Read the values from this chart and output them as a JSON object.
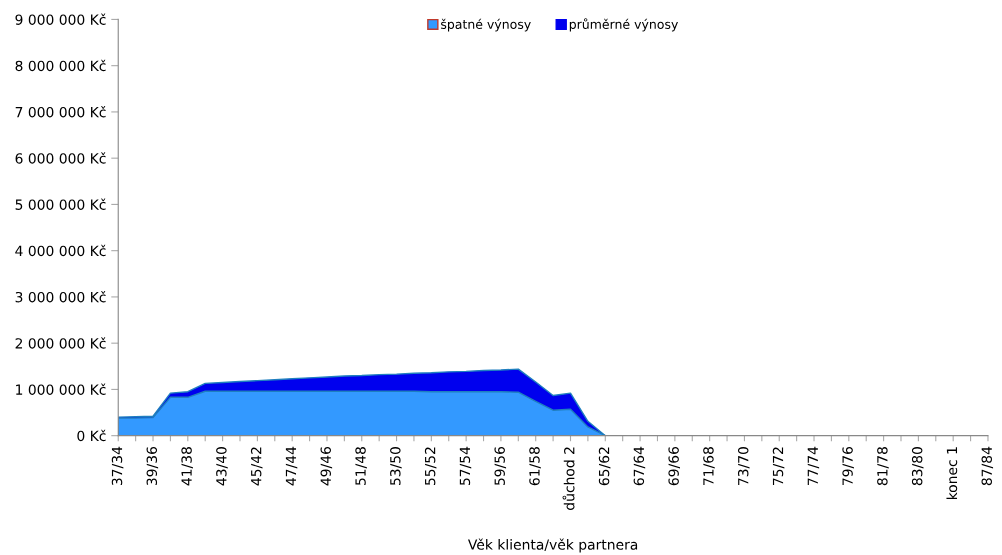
{
  "chart_data": {
    "type": "area",
    "xlabel": "Věk klienta/věk partnera",
    "legend": "top",
    "categories": [
      "37/34",
      null,
      "39/36",
      null,
      "41/38",
      null,
      "43/40",
      null,
      "45/42",
      null,
      "47/44",
      null,
      "49/46",
      null,
      "51/48",
      null,
      "53/50",
      null,
      "55/52",
      null,
      "57/54",
      null,
      "59/56",
      null,
      "61/58",
      null,
      "důchod 2",
      null,
      "65/62",
      null,
      "67/64",
      null,
      "69/66",
      null,
      "71/68",
      null,
      "73/70",
      null,
      "75/72",
      null,
      "77/74",
      null,
      "79/76",
      null,
      "81/78",
      null,
      "83/80",
      null,
      "konec 1",
      null,
      "87/84"
    ],
    "series": [
      {
        "name": "špatné výnosy",
        "color": "#3399ff",
        "values": [
          380000,
          380000,
          390000,
          830000,
          830000,
          960000,
          960000,
          960000,
          960000,
          960000,
          960000,
          960000,
          960000,
          960000,
          960000,
          960000,
          960000,
          960000,
          950000,
          950000,
          950000,
          950000,
          950000,
          940000,
          740000,
          550000,
          570000,
          190000,
          0,
          0,
          0,
          0,
          0,
          0,
          0,
          0,
          0,
          0,
          0,
          0,
          0,
          0,
          0,
          0,
          0,
          0,
          0,
          0,
          0,
          0,
          0
        ]
      },
      {
        "name": "průměrné výnosy",
        "color": "#0000ee",
        "values": [
          400000,
          410000,
          420000,
          920000,
          950000,
          1130000,
          1150000,
          1170000,
          1190000,
          1210000,
          1230000,
          1250000,
          1270000,
          1290000,
          1300000,
          1320000,
          1330000,
          1350000,
          1360000,
          1380000,
          1390000,
          1410000,
          1420000,
          1440000,
          1160000,
          870000,
          920000,
          310000,
          0,
          0,
          0,
          0,
          0,
          0,
          0,
          0,
          0,
          0,
          0,
          0,
          0,
          0,
          0,
          0,
          0,
          0,
          0,
          0,
          0,
          0,
          0
        ]
      }
    ],
    "ylim": [
      0,
      9000000
    ],
    "yticks": [
      {
        "value": 0,
        "label": "0 Kč"
      },
      {
        "value": 1000000,
        "label": "1 000 000 Kč"
      },
      {
        "value": 2000000,
        "label": "2 000 000 Kč"
      },
      {
        "value": 3000000,
        "label": "3 000 000 Kč"
      },
      {
        "value": 4000000,
        "label": "4 000 000 Kč"
      },
      {
        "value": 5000000,
        "label": "5 000 000 Kč"
      },
      {
        "value": 6000000,
        "label": "6 000 000 Kč"
      },
      {
        "value": 7000000,
        "label": "7 000 000 Kč"
      },
      {
        "value": 8000000,
        "label": "8 000 000 Kč"
      },
      {
        "value": 9000000,
        "label": "9 000 000 Kč"
      }
    ]
  }
}
